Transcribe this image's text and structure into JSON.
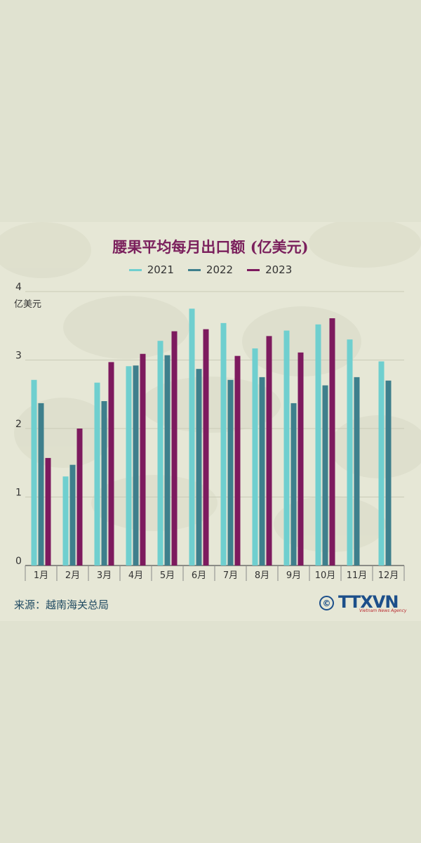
{
  "title": "腰果平均每月出口额 (亿美元)",
  "source": "来源：越南海关总局",
  "logo": {
    "copyright": "©",
    "name": "TTXVN",
    "tagline": "Vietnam News Agency"
  },
  "colors": {
    "2021": "#6fcfcf",
    "2022": "#3e7f8c",
    "2023": "#7d1a5e",
    "title": "#7a1f5c",
    "source": "#214b62"
  },
  "chart_data": {
    "type": "bar",
    "title": "腰果平均每月出口额 (亿美元)",
    "ylabel": "亿美元",
    "xlabel": "",
    "ylim": [
      0,
      4
    ],
    "yticks": [
      0,
      1,
      2,
      3,
      4
    ],
    "grid": true,
    "legend_position": "top",
    "categories": [
      "1月",
      "2月",
      "3月",
      "4月",
      "5月",
      "6月",
      "7月",
      "8月",
      "9月",
      "10月",
      "11月",
      "12月"
    ],
    "series": [
      {
        "name": "2021",
        "color": "#6fcfcf",
        "values": [
          2.71,
          1.3,
          2.67,
          2.91,
          3.28,
          3.75,
          3.54,
          3.17,
          3.43,
          3.52,
          3.3,
          2.98
        ]
      },
      {
        "name": "2022",
        "color": "#3e7f8c",
        "values": [
          2.37,
          1.47,
          2.4,
          2.92,
          3.07,
          2.87,
          2.71,
          2.75,
          2.37,
          2.63,
          2.75,
          2.7
        ]
      },
      {
        "name": "2023",
        "color": "#7d1a5e",
        "values": [
          1.57,
          2.0,
          2.97,
          3.09,
          3.42,
          3.45,
          3.06,
          3.35,
          3.11,
          3.61,
          null,
          null
        ]
      }
    ]
  }
}
